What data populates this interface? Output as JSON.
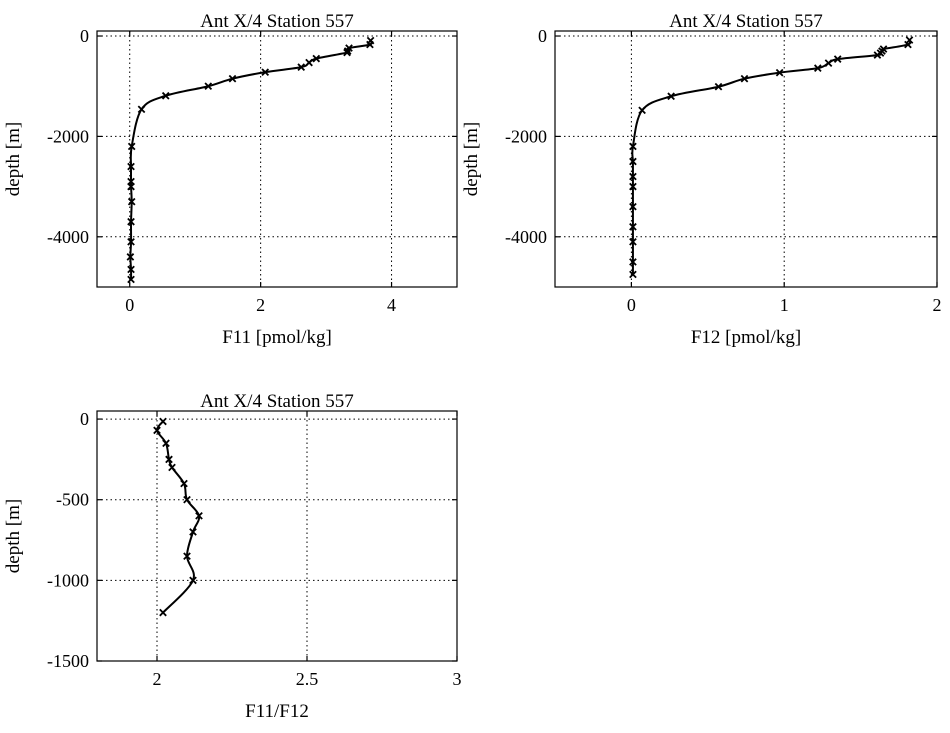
{
  "chart_data": [
    {
      "type": "line",
      "title": "Ant X/4  Station 557",
      "xlabel": "F11 [pmol/kg]",
      "ylabel": "depth [m]",
      "xlim": [
        -0.5,
        5
      ],
      "ylim": [
        -5000,
        100
      ],
      "xticks": [
        0,
        2,
        4
      ],
      "yticks": [
        0,
        -2000,
        -4000
      ],
      "grid": true,
      "series": [
        {
          "marker": "x",
          "x": [
            3.68,
            3.67,
            3.35,
            3.33,
            3.32,
            2.85,
            2.74,
            2.62,
            2.07,
            1.57,
            1.2,
            0.55,
            0.18,
            0.03,
            0.02,
            0.02,
            0.02,
            0.03,
            0.02,
            0.02,
            0.01,
            0.02,
            0.02
          ],
          "y": [
            -90,
            -170,
            -240,
            -300,
            -330,
            -450,
            -530,
            -620,
            -720,
            -850,
            -1000,
            -1190,
            -1460,
            -2200,
            -2600,
            -2900,
            -3000,
            -3300,
            -3700,
            -4100,
            -4400,
            -4650,
            -4850
          ]
        }
      ]
    },
    {
      "type": "line",
      "title": "Ant X/4  Station 557",
      "xlabel": "F12 [pmol/kg]",
      "ylabel": "depth [m]",
      "xlim": [
        -0.5,
        2
      ],
      "ylim": [
        -5000,
        100
      ],
      "xticks": [
        0,
        1,
        2
      ],
      "yticks": [
        0,
        -2000,
        -4000
      ],
      "grid": true,
      "series": [
        {
          "marker": "x",
          "x": [
            1.82,
            1.81,
            1.65,
            1.64,
            1.63,
            1.61,
            1.35,
            1.29,
            1.22,
            0.97,
            0.74,
            0.57,
            0.26,
            0.07,
            0.01,
            0.01,
            0.01,
            0.01,
            0.01,
            0.01,
            0.01,
            0.01,
            0.01
          ],
          "y": [
            -80,
            -170,
            -260,
            -300,
            -340,
            -380,
            -460,
            -540,
            -640,
            -730,
            -850,
            -1010,
            -1200,
            -1480,
            -2200,
            -2500,
            -2800,
            -3000,
            -3400,
            -3800,
            -4100,
            -4500,
            -4750
          ]
        }
      ]
    },
    {
      "type": "line",
      "title": "Ant X/4  Station 557",
      "xlabel": "F11/F12",
      "ylabel": "depth [m]",
      "xlim": [
        1.8,
        3
      ],
      "ylim": [
        -1500,
        50
      ],
      "xticks": [
        2,
        2.5,
        3
      ],
      "yticks": [
        0,
        -500,
        -1000,
        -1500
      ],
      "grid": true,
      "series": [
        {
          "marker": "x",
          "x": [
            2.02,
            2.0,
            2.03,
            2.04,
            2.05,
            2.09,
            2.1,
            2.14,
            2.12,
            2.1,
            2.12,
            2.02
          ],
          "y": [
            -15,
            -70,
            -150,
            -250,
            -300,
            -400,
            -500,
            -600,
            -700,
            -850,
            -1000,
            -1200
          ]
        }
      ]
    }
  ]
}
